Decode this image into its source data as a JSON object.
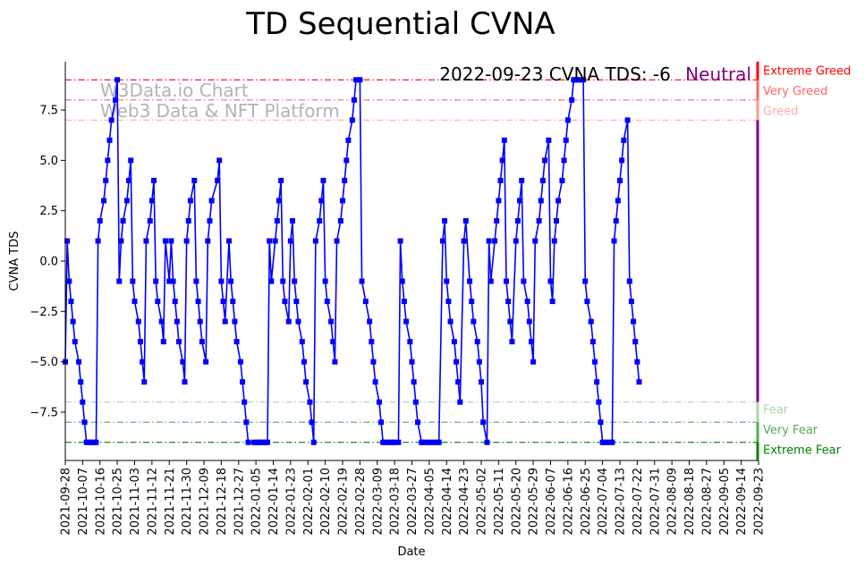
{
  "chart_data": {
    "type": "line",
    "title": "TD Sequential CVNA",
    "xlabel": "Date",
    "ylabel": "CVNA TDS",
    "ylim": [
      -9.9,
      9.9
    ],
    "yticks": [
      -7.5,
      -5.0,
      -2.5,
      0.0,
      2.5,
      5.0,
      7.5
    ],
    "ytick_labels": [
      "−7.5",
      "−5.0",
      "−2.5",
      "0.0",
      "2.5",
      "5.0",
      "7.5"
    ],
    "xticks": [
      "2021-09-28",
      "2021-10-07",
      "2021-10-16",
      "2021-10-25",
      "2021-11-03",
      "2021-11-12",
      "2021-11-21",
      "2021-11-30",
      "2021-12-09",
      "2021-12-18",
      "2021-12-27",
      "2022-01-05",
      "2022-01-14",
      "2022-01-23",
      "2022-02-01",
      "2022-02-10",
      "2022-02-19",
      "2022-02-28",
      "2022-03-09",
      "2022-03-18",
      "2022-03-27",
      "2022-04-05",
      "2022-04-14",
      "2022-04-23",
      "2022-05-02",
      "2022-05-11",
      "2022-05-20",
      "2022-05-29",
      "2022-06-07",
      "2022-06-16",
      "2022-06-25",
      "2022-07-04",
      "2022-07-13",
      "2022-07-22",
      "2022-07-31",
      "2022-08-09",
      "2022-08-18",
      "2022-08-27",
      "2022-09-05",
      "2022-09-14",
      "2022-09-23"
    ],
    "watermark": [
      "W3Data.io Chart",
      "Web3 Data & NFT Platform"
    ],
    "annotation": {
      "text": "2022-09-23 CVNA TDS: -6",
      "status": "Neutral",
      "status_color": "#800080"
    },
    "grid": false,
    "series": [
      {
        "color": "#0000ff",
        "marker": "square",
        "points": [
          [
            "2021-09-28",
            -5
          ],
          [
            "2021-09-29",
            1
          ],
          [
            "2021-09-30",
            -1
          ],
          [
            "2021-10-01",
            -2
          ],
          [
            "2021-10-02",
            -3
          ],
          [
            "2021-10-03",
            -4
          ],
          [
            "2021-10-05",
            -5
          ],
          [
            "2021-10-06",
            -6
          ],
          [
            "2021-10-07",
            -7
          ],
          [
            "2021-10-08",
            -8
          ],
          [
            "2021-10-09",
            -9
          ],
          [
            "2021-10-10",
            -9
          ],
          [
            "2021-10-11",
            -9
          ],
          [
            "2021-10-12",
            -9
          ],
          [
            "2021-10-13",
            -9
          ],
          [
            "2021-10-14",
            -9
          ],
          [
            "2021-10-15",
            1
          ],
          [
            "2021-10-16",
            2
          ],
          [
            "2021-10-18",
            3
          ],
          [
            "2021-10-19",
            4
          ],
          [
            "2021-10-20",
            5
          ],
          [
            "2021-10-21",
            6
          ],
          [
            "2021-10-22",
            7
          ],
          [
            "2021-10-24",
            8
          ],
          [
            "2021-10-25",
            9
          ],
          [
            "2021-10-26",
            -1
          ],
          [
            "2021-10-27",
            1
          ],
          [
            "2021-10-28",
            2
          ],
          [
            "2021-10-30",
            3
          ],
          [
            "2021-10-31",
            4
          ],
          [
            "2021-11-01",
            5
          ],
          [
            "2021-11-02",
            -1
          ],
          [
            "2021-11-03",
            -2
          ],
          [
            "2021-11-05",
            -3
          ],
          [
            "2021-11-06",
            -4
          ],
          [
            "2021-11-07",
            -5
          ],
          [
            "2021-11-08",
            -6
          ],
          [
            "2021-11-09",
            1
          ],
          [
            "2021-11-11",
            2
          ],
          [
            "2021-11-12",
            3
          ],
          [
            "2021-11-13",
            4
          ],
          [
            "2021-11-14",
            -1
          ],
          [
            "2021-11-15",
            -2
          ],
          [
            "2021-11-17",
            -3
          ],
          [
            "2021-11-18",
            -4
          ],
          [
            "2021-11-19",
            1
          ],
          [
            "2021-11-21",
            -1
          ],
          [
            "2021-11-22",
            1
          ],
          [
            "2021-11-23",
            -1
          ],
          [
            "2021-11-24",
            -2
          ],
          [
            "2021-11-25",
            -3
          ],
          [
            "2021-11-26",
            -4
          ],
          [
            "2021-11-28",
            -5
          ],
          [
            "2021-11-29",
            -6
          ],
          [
            "2021-11-30",
            1
          ],
          [
            "2021-12-01",
            2
          ],
          [
            "2021-12-02",
            3
          ],
          [
            "2021-12-04",
            4
          ],
          [
            "2021-12-05",
            -1
          ],
          [
            "2021-12-06",
            -2
          ],
          [
            "2021-12-07",
            -3
          ],
          [
            "2021-12-08",
            -4
          ],
          [
            "2021-12-10",
            -5
          ],
          [
            "2021-12-11",
            1
          ],
          [
            "2021-12-12",
            2
          ],
          [
            "2021-12-13",
            3
          ],
          [
            "2021-12-16",
            4
          ],
          [
            "2021-12-17",
            5
          ],
          [
            "2021-12-18",
            -1
          ],
          [
            "2021-12-19",
            -2
          ],
          [
            "2021-12-20",
            -3
          ],
          [
            "2021-12-22",
            1
          ],
          [
            "2021-12-23",
            -1
          ],
          [
            "2021-12-24",
            -2
          ],
          [
            "2021-12-25",
            -3
          ],
          [
            "2021-12-26",
            -4
          ],
          [
            "2021-12-28",
            -5
          ],
          [
            "2021-12-29",
            -6
          ],
          [
            "2021-12-30",
            -7
          ],
          [
            "2021-12-31",
            -8
          ],
          [
            "2022-01-01",
            -9
          ],
          [
            "2022-01-04",
            -9
          ],
          [
            "2022-01-05",
            -9
          ],
          [
            "2022-01-06",
            -9
          ],
          [
            "2022-01-07",
            -9
          ],
          [
            "2022-01-08",
            -9
          ],
          [
            "2022-01-09",
            -9
          ],
          [
            "2022-01-10",
            -9
          ],
          [
            "2022-01-11",
            -9
          ],
          [
            "2022-01-12",
            1
          ],
          [
            "2022-01-13",
            -1
          ],
          [
            "2022-01-15",
            1
          ],
          [
            "2022-01-16",
            2
          ],
          [
            "2022-01-17",
            3
          ],
          [
            "2022-01-18",
            4
          ],
          [
            "2022-01-19",
            -1
          ],
          [
            "2022-01-20",
            -2
          ],
          [
            "2022-01-22",
            -3
          ],
          [
            "2022-01-23",
            1
          ],
          [
            "2022-01-24",
            2
          ],
          [
            "2022-01-25",
            -1
          ],
          [
            "2022-01-26",
            -2
          ],
          [
            "2022-01-27",
            -3
          ],
          [
            "2022-01-29",
            -4
          ],
          [
            "2022-01-30",
            -5
          ],
          [
            "2022-01-31",
            -6
          ],
          [
            "2022-02-02",
            -7
          ],
          [
            "2022-02-03",
            -8
          ],
          [
            "2022-02-04",
            -9
          ],
          [
            "2022-02-05",
            1
          ],
          [
            "2022-02-07",
            2
          ],
          [
            "2022-02-08",
            3
          ],
          [
            "2022-02-09",
            4
          ],
          [
            "2022-02-10",
            -1
          ],
          [
            "2022-02-11",
            -2
          ],
          [
            "2022-02-13",
            -3
          ],
          [
            "2022-02-14",
            -4
          ],
          [
            "2022-02-15",
            -5
          ],
          [
            "2022-02-16",
            1
          ],
          [
            "2022-02-18",
            2
          ],
          [
            "2022-02-19",
            3
          ],
          [
            "2022-02-20",
            4
          ],
          [
            "2022-02-21",
            5
          ],
          [
            "2022-02-22",
            6
          ],
          [
            "2022-02-24",
            7
          ],
          [
            "2022-02-25",
            8
          ],
          [
            "2022-02-26",
            9
          ],
          [
            "2022-02-28",
            9
          ],
          [
            "2022-03-01",
            -1
          ],
          [
            "2022-03-03",
            -2
          ],
          [
            "2022-03-05",
            -3
          ],
          [
            "2022-03-06",
            -4
          ],
          [
            "2022-03-07",
            -5
          ],
          [
            "2022-03-08",
            -6
          ],
          [
            "2022-03-10",
            -7
          ],
          [
            "2022-03-11",
            -8
          ],
          [
            "2022-03-12",
            -9
          ],
          [
            "2022-03-13",
            -9
          ],
          [
            "2022-03-15",
            -9
          ],
          [
            "2022-03-16",
            -9
          ],
          [
            "2022-03-17",
            -9
          ],
          [
            "2022-03-18",
            -9
          ],
          [
            "2022-03-20",
            -9
          ],
          [
            "2022-03-21",
            1
          ],
          [
            "2022-03-22",
            -1
          ],
          [
            "2022-03-23",
            -2
          ],
          [
            "2022-03-24",
            -3
          ],
          [
            "2022-03-26",
            -4
          ],
          [
            "2022-03-27",
            -5
          ],
          [
            "2022-03-28",
            -6
          ],
          [
            "2022-03-29",
            -7
          ],
          [
            "2022-03-30",
            -8
          ],
          [
            "2022-04-01",
            -9
          ],
          [
            "2022-04-02",
            -9
          ],
          [
            "2022-04-03",
            -9
          ],
          [
            "2022-04-05",
            -9
          ],
          [
            "2022-04-06",
            -9
          ],
          [
            "2022-04-08",
            -9
          ],
          [
            "2022-04-09",
            -9
          ],
          [
            "2022-04-10",
            -9
          ],
          [
            "2022-04-12",
            1
          ],
          [
            "2022-04-13",
            2
          ],
          [
            "2022-04-14",
            -1
          ],
          [
            "2022-04-15",
            -2
          ],
          [
            "2022-04-16",
            -3
          ],
          [
            "2022-04-18",
            -4
          ],
          [
            "2022-04-19",
            -5
          ],
          [
            "2022-04-20",
            -6
          ],
          [
            "2022-04-21",
            -7
          ],
          [
            "2022-04-23",
            1
          ],
          [
            "2022-04-24",
            2
          ],
          [
            "2022-04-26",
            -1
          ],
          [
            "2022-04-27",
            -2
          ],
          [
            "2022-04-28",
            -3
          ],
          [
            "2022-04-30",
            -4
          ],
          [
            "2022-05-01",
            -5
          ],
          [
            "2022-05-02",
            -6
          ],
          [
            "2022-05-03",
            -8
          ],
          [
            "2022-05-05",
            -9
          ],
          [
            "2022-05-06",
            1
          ],
          [
            "2022-05-07",
            -1
          ],
          [
            "2022-05-09",
            1
          ],
          [
            "2022-05-10",
            2
          ],
          [
            "2022-05-11",
            3
          ],
          [
            "2022-05-12",
            4
          ],
          [
            "2022-05-13",
            5
          ],
          [
            "2022-05-14",
            6
          ],
          [
            "2022-05-15",
            -1
          ],
          [
            "2022-05-16",
            -2
          ],
          [
            "2022-05-17",
            -3
          ],
          [
            "2022-05-18",
            -4
          ],
          [
            "2022-05-20",
            1
          ],
          [
            "2022-05-21",
            2
          ],
          [
            "2022-05-22",
            3
          ],
          [
            "2022-05-23",
            4
          ],
          [
            "2022-05-24",
            -1
          ],
          [
            "2022-05-26",
            -2
          ],
          [
            "2022-05-27",
            -3
          ],
          [
            "2022-05-28",
            -4
          ],
          [
            "2022-05-29",
            -5
          ],
          [
            "2022-05-30",
            1
          ],
          [
            "2022-06-01",
            2
          ],
          [
            "2022-06-02",
            3
          ],
          [
            "2022-06-03",
            4
          ],
          [
            "2022-06-04",
            5
          ],
          [
            "2022-06-06",
            6
          ],
          [
            "2022-06-07",
            -1
          ],
          [
            "2022-06-08",
            -2
          ],
          [
            "2022-06-09",
            1
          ],
          [
            "2022-06-10",
            2
          ],
          [
            "2022-06-11",
            3
          ],
          [
            "2022-06-13",
            4
          ],
          [
            "2022-06-14",
            5
          ],
          [
            "2022-06-15",
            6
          ],
          [
            "2022-06-16",
            7
          ],
          [
            "2022-06-18",
            8
          ],
          [
            "2022-06-19",
            9
          ],
          [
            "2022-06-20",
            9
          ],
          [
            "2022-06-21",
            9
          ],
          [
            "2022-06-22",
            9
          ],
          [
            "2022-06-24",
            9
          ],
          [
            "2022-06-25",
            -1
          ],
          [
            "2022-06-26",
            -2
          ],
          [
            "2022-06-28",
            -3
          ],
          [
            "2022-06-29",
            -4
          ],
          [
            "2022-06-30",
            -5
          ],
          [
            "2022-07-01",
            -6
          ],
          [
            "2022-07-02",
            -7
          ],
          [
            "2022-07-03",
            -8
          ],
          [
            "2022-07-04",
            -9
          ],
          [
            "2022-07-05",
            -9
          ],
          [
            "2022-07-06",
            -9
          ],
          [
            "2022-07-08",
            -9
          ],
          [
            "2022-07-09",
            -9
          ],
          [
            "2022-07-10",
            1
          ],
          [
            "2022-07-11",
            2
          ],
          [
            "2022-07-12",
            3
          ],
          [
            "2022-07-13",
            4
          ],
          [
            "2022-07-14",
            5
          ],
          [
            "2022-07-15",
            6
          ],
          [
            "2022-07-17",
            7
          ],
          [
            "2022-07-18",
            -1
          ],
          [
            "2022-07-19",
            -2
          ],
          [
            "2022-07-20",
            -3
          ],
          [
            "2022-07-21",
            -4
          ],
          [
            "2022-07-22",
            -5
          ],
          [
            "2022-07-23",
            -6
          ]
        ]
      }
    ],
    "bands": [
      {
        "label": "Extreme Greed",
        "value": 9,
        "color": "#ff0000"
      },
      {
        "label": "Very Greed",
        "value": 8,
        "color": "#ff6666"
      },
      {
        "label": "Greed",
        "value": 7,
        "color": "#ffaaaa"
      },
      {
        "label": "Fear",
        "value": -7,
        "color": "#a8d8a8"
      },
      {
        "label": "Very Fear",
        "value": -8,
        "color": "#55aa55"
      },
      {
        "label": "Extreme Fear",
        "value": -9,
        "color": "#008000"
      }
    ]
  }
}
